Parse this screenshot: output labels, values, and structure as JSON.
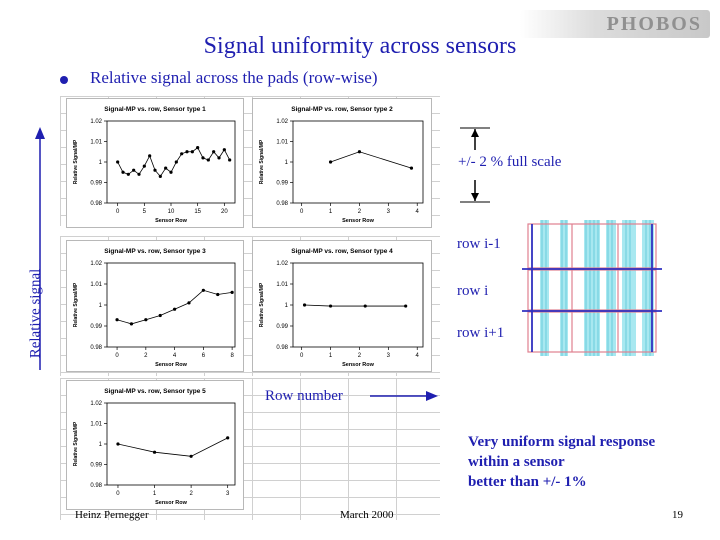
{
  "header": {
    "title": "Signal uniformity across sensors",
    "logo": "PHOBOS"
  },
  "bullet": {
    "text": "Relative signal across the pads (row-wise)"
  },
  "annotations": {
    "full_scale": "+/- 2 % full scale",
    "y_axis_label": "Relative signal",
    "x_axis_label": "Row number",
    "row_prev": "row i-1",
    "row_cur": "row i",
    "row_next": "row i+1",
    "conclusion": [
      "Very uniform signal response",
      "within a sensor",
      "better than +/- 1%"
    ]
  },
  "footer": {
    "author": "Heinz Pernegger",
    "date": "March 2000",
    "page": "19"
  },
  "colors": {
    "title": "#1f1fb0",
    "sensor_fill": "#a8e8f0",
    "sensor_row_line": "#3030c0",
    "sensor_pad_line": "#e08090"
  },
  "chart_data": [
    {
      "type": "line",
      "title": "Signal-MP vs. row, Sensor type 1",
      "xlabel": "Sensor Row",
      "ylabel": "Relative Signal/MP",
      "xlim": [
        -2,
        22
      ],
      "ylim": [
        0.98,
        1.02
      ],
      "xticks": [
        0,
        5,
        10,
        15,
        20
      ],
      "yticks": [
        "1.02",
        "1.01",
        "1",
        "0.99",
        "0.98"
      ],
      "x": [
        0,
        1,
        2,
        3,
        4,
        5,
        6,
        7,
        8,
        9,
        10,
        11,
        12,
        13,
        14,
        15,
        16,
        17,
        18,
        19,
        20,
        21
      ],
      "y": [
        1.0,
        0.995,
        0.994,
        0.996,
        0.994,
        0.998,
        1.003,
        0.996,
        0.993,
        0.997,
        0.995,
        1.0,
        1.004,
        1.005,
        1.005,
        1.007,
        1.002,
        1.001,
        1.005,
        1.002,
        1.006,
        1.001
      ]
    },
    {
      "type": "line",
      "title": "Signal-MP vs. row, Sensor type 2",
      "xlabel": "Sensor Row",
      "ylabel": "Relative Signal/MP",
      "xlim": [
        -0.3,
        4.2
      ],
      "ylim": [
        0.98,
        1.02
      ],
      "xticks": [
        0,
        1,
        2,
        3,
        4
      ],
      "yticks": [
        "1.02",
        "1.01",
        "1",
        "0.99",
        "0.98"
      ],
      "x": [
        1,
        2,
        3.8
      ],
      "y": [
        1.0,
        1.005,
        0.997
      ]
    },
    {
      "type": "line",
      "title": "Signal-MP vs. row, Sensor type 3",
      "xlabel": "Sensor Row",
      "ylabel": "Relative Signal/MP",
      "xlim": [
        -0.7,
        8.2
      ],
      "ylim": [
        0.98,
        1.02
      ],
      "xticks": [
        0,
        2,
        4,
        6,
        8
      ],
      "yticks": [
        "1.02",
        "1.01",
        "1",
        "0.99",
        "0.98"
      ],
      "x": [
        0,
        1,
        2,
        3,
        4,
        5,
        6,
        7,
        8
      ],
      "y": [
        0.993,
        0.991,
        0.993,
        0.995,
        0.998,
        1.001,
        1.007,
        1.005,
        1.006
      ]
    },
    {
      "type": "line",
      "title": "Signal-MP vs. row, Sensor type 4",
      "xlabel": "Sensor Row",
      "ylabel": "Relative Signal/MP",
      "xlim": [
        -0.3,
        4.2
      ],
      "ylim": [
        0.98,
        1.02
      ],
      "xticks": [
        0,
        1,
        2,
        3,
        4
      ],
      "yticks": [
        "1.02",
        "1.01",
        "1",
        "0.99",
        "0.98"
      ],
      "x": [
        0.1,
        1,
        2.2,
        3.6
      ],
      "y": [
        1.0,
        0.9995,
        0.9995,
        0.9995
      ]
    },
    {
      "type": "line",
      "title": "Signal-MP vs. row, Sensor type 5",
      "xlabel": "Sensor Row",
      "ylabel": "Relative Signal/MP",
      "xlim": [
        -0.3,
        3.2
      ],
      "ylim": [
        0.98,
        1.02
      ],
      "xticks": [
        0,
        1,
        2,
        3
      ],
      "yticks": [
        "1.02",
        "1.01",
        "1",
        "0.99",
        "0.98"
      ],
      "x": [
        0,
        1,
        2,
        3
      ],
      "y": [
        1.0,
        0.996,
        0.994,
        1.003
      ]
    }
  ]
}
